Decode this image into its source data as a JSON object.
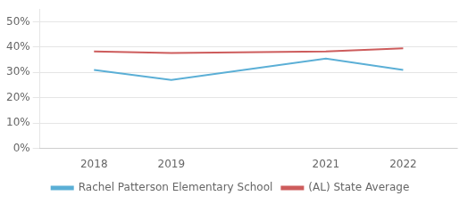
{
  "chart_data": {
    "type": "line",
    "x": [
      2018,
      2019,
      2021,
      2022
    ],
    "series": [
      {
        "name": "Rachel Patterson Elementary School",
        "color": "#5bafd6",
        "values": [
          0.31,
          0.27,
          0.355,
          0.31
        ]
      },
      {
        "name": "(AL) State Average",
        "color": "#cd5c5c",
        "values": [
          0.383,
          0.377,
          0.383,
          0.395
        ]
      }
    ],
    "xlim": [
      2017.3,
      2022.7
    ],
    "xticks": [
      2018,
      2019,
      2021,
      2022
    ],
    "ylim": [
      0,
      0.55
    ],
    "yticks": [
      {
        "value": 0.0,
        "label": "0%"
      },
      {
        "value": 0.1,
        "label": "10%"
      },
      {
        "value": 0.2,
        "label": "20%"
      },
      {
        "value": 0.3,
        "label": "30%"
      },
      {
        "value": 0.4,
        "label": "40%"
      },
      {
        "value": 0.5,
        "label": "50%"
      }
    ],
    "grid": "y",
    "legend": "bottom",
    "marker": "none"
  }
}
